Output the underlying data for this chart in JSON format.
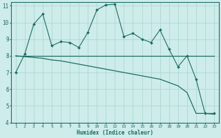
{
  "xlabel": "Humidex (Indice chaleur)",
  "xlim": [
    0.5,
    23.5
  ],
  "ylim": [
    4,
    11.2
  ],
  "yticks": [
    4,
    5,
    6,
    7,
    8,
    9,
    10,
    11
  ],
  "xticks": [
    1,
    2,
    3,
    4,
    5,
    6,
    7,
    8,
    9,
    10,
    11,
    12,
    13,
    14,
    15,
    16,
    17,
    18,
    19,
    20,
    21,
    22,
    23
  ],
  "bg_color": "#cdecea",
  "line_color": "#1e6b63",
  "grid_color": "#aed8d2",
  "line1_x": [
    1,
    2,
    3,
    4,
    5,
    6,
    7,
    8,
    9,
    10,
    11,
    12,
    13,
    14,
    15,
    16,
    17,
    18,
    19,
    20,
    21,
    22,
    23
  ],
  "line1_y": [
    7.0,
    8.1,
    9.9,
    10.5,
    8.6,
    8.85,
    8.8,
    8.5,
    9.4,
    10.75,
    11.05,
    11.1,
    9.15,
    9.35,
    9.0,
    8.8,
    9.55,
    8.4,
    7.35,
    8.0,
    6.6,
    4.55,
    4.55
  ],
  "line2_x": [
    1,
    23
  ],
  "line2_y": [
    8.0,
    8.0
  ],
  "line3_x": [
    1,
    2,
    3,
    4,
    5,
    6,
    7,
    8,
    9,
    10,
    11,
    12,
    13,
    14,
    15,
    16,
    17,
    18,
    19,
    20,
    21,
    22,
    23
  ],
  "line3_y": [
    8.0,
    7.95,
    7.9,
    7.85,
    7.75,
    7.7,
    7.6,
    7.5,
    7.4,
    7.3,
    7.2,
    7.1,
    7.0,
    6.9,
    6.8,
    6.7,
    6.6,
    6.4,
    6.2,
    5.8,
    4.55,
    4.55,
    4.5
  ]
}
